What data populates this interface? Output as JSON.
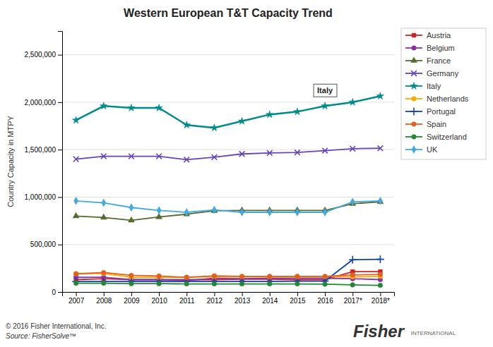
{
  "chart_data": {
    "type": "line",
    "title": "Western European T&T Capacity Trend",
    "ylabel": "Country Capacity in MTPY",
    "categories": [
      "2007",
      "2008",
      "2009",
      "2010",
      "2011",
      "2012",
      "2013",
      "2014",
      "2015",
      "2016",
      "2017*",
      "2018*"
    ],
    "ylim": [
      0,
      2750000
    ],
    "yticks": [
      0,
      {
        "value": 500000,
        "label": "500,000"
      },
      {
        "value": 1000000,
        "label": "1,000,000"
      },
      {
        "value": 1500000,
        "label": "1,500,000"
      },
      {
        "value": 2000000,
        "label": "2,000,000"
      },
      {
        "value": 2500000,
        "label": "2,500,000"
      }
    ],
    "grid": true,
    "legend": "right",
    "series": [
      {
        "name": "Austria",
        "color": "#cc2222",
        "marker": "square",
        "values": [
          130000,
          140000,
          130000,
          130000,
          130000,
          130000,
          135000,
          135000,
          130000,
          130000,
          215000,
          215000
        ]
      },
      {
        "name": "Belgium",
        "color": "#8833aa",
        "marker": "circle",
        "values": [
          155000,
          155000,
          130000,
          130000,
          120000,
          145000,
          140000,
          145000,
          145000,
          145000,
          140000,
          130000
        ]
      },
      {
        "name": "France",
        "color": "#556b2f",
        "marker": "triangle",
        "values": [
          800000,
          785000,
          755000,
          790000,
          820000,
          855000,
          860000,
          860000,
          860000,
          860000,
          930000,
          950000
        ]
      },
      {
        "name": "Germany",
        "color": "#6644bb",
        "marker": "x",
        "values": [
          1400000,
          1430000,
          1430000,
          1430000,
          1395000,
          1420000,
          1455000,
          1465000,
          1470000,
          1490000,
          1510000,
          1515000
        ]
      },
      {
        "name": "Italy",
        "color": "#008b8b",
        "marker": "star",
        "values": [
          1810000,
          1960000,
          1940000,
          1940000,
          1760000,
          1730000,
          1800000,
          1870000,
          1900000,
          1960000,
          2000000,
          2065000
        ]
      },
      {
        "name": "Netherlands",
        "color": "#ffaa00",
        "marker": "circle",
        "values": [
          195000,
          195000,
          155000,
          155000,
          155000,
          160000,
          160000,
          160000,
          160000,
          160000,
          160000,
          165000
        ]
      },
      {
        "name": "Portugal",
        "color": "#1144aa",
        "marker": "plus",
        "values": [
          110000,
          110000,
          110000,
          110000,
          110000,
          110000,
          110000,
          110000,
          115000,
          115000,
          340000,
          345000
        ]
      },
      {
        "name": "Spain",
        "color": "#e06020",
        "marker": "circle",
        "values": [
          190000,
          205000,
          175000,
          168000,
          155000,
          170000,
          165000,
          165000,
          165000,
          165000,
          180000,
          185000
        ]
      },
      {
        "name": "Switzerland",
        "color": "#228833",
        "marker": "circle",
        "values": [
          92000,
          92000,
          88000,
          88000,
          85000,
          85000,
          85000,
          85000,
          85000,
          82000,
          75000,
          70000
        ]
      },
      {
        "name": "UK",
        "color": "#44aadd",
        "marker": "diamond",
        "values": [
          960000,
          940000,
          890000,
          860000,
          840000,
          865000,
          840000,
          840000,
          840000,
          840000,
          950000,
          960000
        ]
      }
    ],
    "annotations": [
      {
        "text": "Italy",
        "x": "2016",
        "y": 1960000
      }
    ],
    "footer": [
      "© 2016 Fisher International, Inc.",
      "Source: FisherSolve™"
    ],
    "logo": [
      "Fisher",
      "INTERNATIONAL"
    ]
  }
}
